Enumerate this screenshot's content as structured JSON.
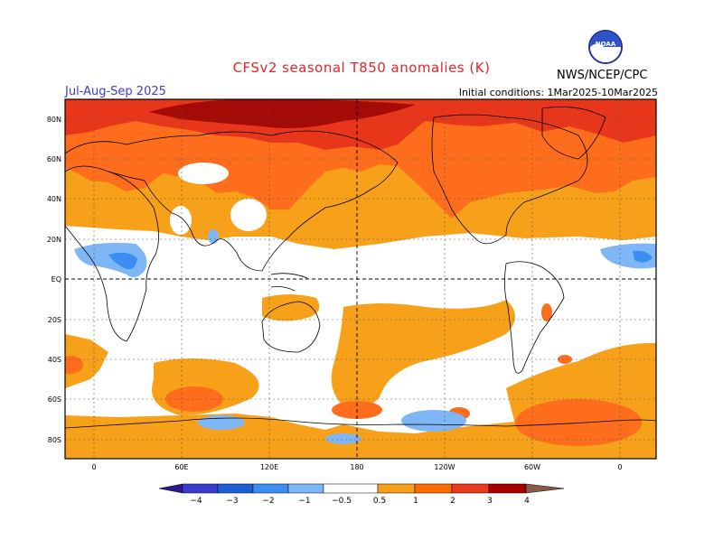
{
  "header": {
    "title": "CFSv2 seasonal T850 anomalies (K)",
    "season": "Jul-Aug-Sep 2025",
    "initial_conditions": "Initial conditions: 1Mar2025-10Mar2025",
    "agency": "NWS/NCEP/CPC",
    "logo_text": "NOAA"
  },
  "map": {
    "lat_labels": [
      "80N",
      "60N",
      "40N",
      "20N",
      "EQ",
      "20S",
      "40S",
      "60S",
      "80S"
    ],
    "lon_labels": [
      "0",
      "60E",
      "120E",
      "180",
      "120W",
      "60W",
      "0"
    ]
  },
  "colorbar": {
    "labels": [
      "−4",
      "−3",
      "−2",
      "−1",
      "−0.5",
      "0.5",
      "1",
      "2",
      "3",
      "4"
    ],
    "colors": [
      "#2a1a8c",
      "#3a3acf",
      "#1c5fd6",
      "#3c8ff0",
      "#7fb6f5",
      "#ffffff",
      "#f7a11a",
      "#ff6a00",
      "#e83b1e",
      "#a80000",
      "#c9a08f",
      "#8b5a4a"
    ]
  },
  "colors": {
    "ocean_neutral": "#ffffff",
    "warm_05": "#f7a11a",
    "warm_1": "#fe6d1c",
    "warm_2": "#e8361b",
    "warm_3": "#a40a06",
    "cool_05": "#7fb6f5",
    "title_red": "#e4242a",
    "season_blue": "#3b3bd2"
  }
}
